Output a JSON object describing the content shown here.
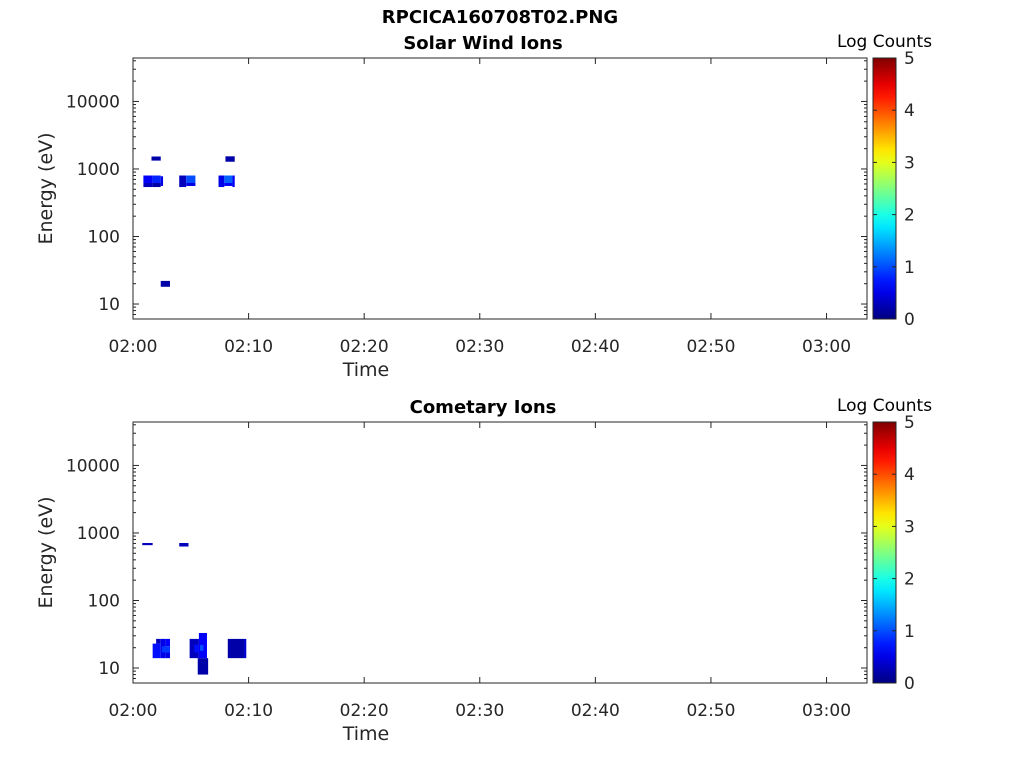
{
  "figure": {
    "title": "RPCICA160708T02.PNG"
  },
  "chart_data": [
    {
      "type": "heatmap",
      "title": "Solar Wind Ions",
      "xlabel": "Time",
      "ylabel": "Energy (eV)",
      "x_ticks": [
        "02:00",
        "02:10",
        "02:20",
        "02:30",
        "02:40",
        "02:50",
        "03:00"
      ],
      "xlim_minutes": [
        0,
        63.5
      ],
      "y_scale": "log",
      "y_ticks": [
        10,
        100,
        1000,
        10000
      ],
      "ylim": [
        6,
        44000
      ],
      "colorbar": {
        "title": "Log Counts",
        "ticks": [
          0,
          1,
          2,
          3,
          4,
          5
        ],
        "range": [
          0,
          5
        ],
        "colormap": "jet"
      },
      "cells": [
        {
          "t0": 0.9,
          "t1": 1.7,
          "e0": 620,
          "e1": 800,
          "v": 0.6
        },
        {
          "t0": 0.9,
          "t1": 1.7,
          "e0": 540,
          "e1": 620,
          "v": 0.3
        },
        {
          "t0": 1.7,
          "t1": 2.4,
          "e0": 620,
          "e1": 800,
          "v": 0.8
        },
        {
          "t0": 1.7,
          "t1": 2.4,
          "e0": 540,
          "e1": 620,
          "v": 0.2
        },
        {
          "t0": 2.4,
          "t1": 2.6,
          "e0": 560,
          "e1": 780,
          "v": 0.5
        },
        {
          "t0": 1.6,
          "t1": 2.4,
          "e0": 1330,
          "e1": 1530,
          "v": 0.2
        },
        {
          "t0": 2.4,
          "t1": 3.2,
          "e0": 18,
          "e1": 22,
          "v": 0.2
        },
        {
          "t0": 4.0,
          "t1": 4.6,
          "e0": 540,
          "e1": 800,
          "v": 0.3
        },
        {
          "t0": 4.6,
          "t1": 5.4,
          "e0": 620,
          "e1": 800,
          "v": 1.0
        },
        {
          "t0": 4.6,
          "t1": 5.4,
          "e0": 560,
          "e1": 620,
          "v": 0.5
        },
        {
          "t0": 7.4,
          "t1": 7.9,
          "e0": 540,
          "e1": 800,
          "v": 0.5
        },
        {
          "t0": 7.9,
          "t1": 8.6,
          "e0": 620,
          "e1": 800,
          "v": 1.1
        },
        {
          "t0": 7.9,
          "t1": 8.6,
          "e0": 560,
          "e1": 620,
          "v": 0.6
        },
        {
          "t0": 8.6,
          "t1": 8.8,
          "e0": 540,
          "e1": 800,
          "v": 0.6
        },
        {
          "t0": 8.0,
          "t1": 8.8,
          "e0": 1280,
          "e1": 1540,
          "v": 0.2
        }
      ]
    },
    {
      "type": "heatmap",
      "title": "Cometary Ions",
      "xlabel": "Time",
      "ylabel": "Energy (eV)",
      "x_ticks": [
        "02:00",
        "02:10",
        "02:20",
        "02:30",
        "02:40",
        "02:50",
        "03:00"
      ],
      "xlim_minutes": [
        0,
        63.5
      ],
      "y_scale": "log",
      "y_ticks": [
        10,
        100,
        1000,
        10000
      ],
      "ylim": [
        6,
        44000
      ],
      "colorbar": {
        "title": "Log Counts",
        "ticks": [
          0,
          1,
          2,
          3,
          4,
          5
        ],
        "range": [
          0,
          5
        ],
        "colormap": "jet"
      },
      "cells": [
        {
          "t0": 0.8,
          "t1": 1.7,
          "e0": 660,
          "e1": 710,
          "v": 0.3
        },
        {
          "t0": 4.0,
          "t1": 4.8,
          "e0": 630,
          "e1": 710,
          "v": 0.3
        },
        {
          "t0": 1.7,
          "t1": 2.4,
          "e0": 14,
          "e1": 23,
          "v": 0.7
        },
        {
          "t0": 2.0,
          "t1": 2.4,
          "e0": 23,
          "e1": 27,
          "v": 0.3
        },
        {
          "t0": 2.4,
          "t1": 2.8,
          "e0": 14,
          "e1": 27,
          "v": 0.5
        },
        {
          "t0": 2.5,
          "t1": 3.2,
          "e0": 17,
          "e1": 21,
          "v": 0.9
        },
        {
          "t0": 2.8,
          "t1": 3.2,
          "e0": 21,
          "e1": 27,
          "v": 0.6
        },
        {
          "t0": 2.8,
          "t1": 3.2,
          "e0": 14,
          "e1": 17,
          "v": 0.5
        },
        {
          "t0": 4.9,
          "t1": 5.7,
          "e0": 14,
          "e1": 27,
          "v": 0.3
        },
        {
          "t0": 5.3,
          "t1": 5.7,
          "e0": 17,
          "e1": 22,
          "v": 0.7
        },
        {
          "t0": 5.6,
          "t1": 6.5,
          "e0": 8,
          "e1": 14,
          "v": 0.2
        },
        {
          "t0": 5.7,
          "t1": 6.4,
          "e0": 14,
          "e1": 33,
          "v": 0.6
        },
        {
          "t0": 5.8,
          "t1": 6.1,
          "e0": 18,
          "e1": 22,
          "v": 1.0
        },
        {
          "t0": 8.2,
          "t1": 9.6,
          "e0": 14,
          "e1": 27,
          "v": 0.2
        },
        {
          "t0": 9.6,
          "t1": 9.8,
          "e0": 14,
          "e1": 27,
          "v": 0.4
        }
      ]
    }
  ]
}
